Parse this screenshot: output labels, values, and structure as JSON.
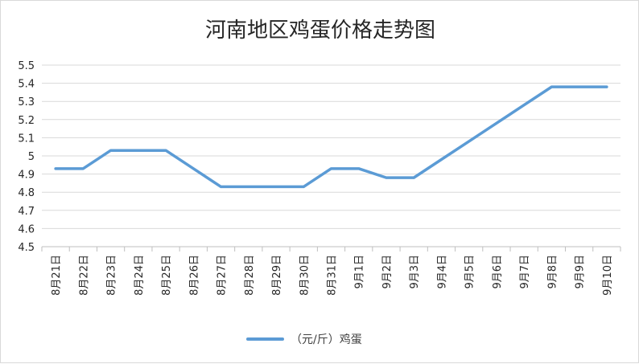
{
  "chart_data": {
    "type": "line",
    "title": "河南地区鸡蛋价格走势图",
    "xlabel": "",
    "ylabel": "",
    "categories": [
      "8月21日",
      "8月22日",
      "8月23日",
      "8月24日",
      "8月25日",
      "8月26日",
      "8月27日",
      "8月28日",
      "8月29日",
      "8月30日",
      "8月31日",
      "9月1日",
      "9月2日",
      "9月3日",
      "9月4日",
      "9月5日",
      "9月6日",
      "9月7日",
      "9月8日",
      "9月9日",
      "9月10日"
    ],
    "series": [
      {
        "name": "（元/斤）鸡蛋",
        "values": [
          4.93,
          4.93,
          5.03,
          5.03,
          5.03,
          4.93,
          4.83,
          4.83,
          4.83,
          4.83,
          4.93,
          4.93,
          4.88,
          4.88,
          4.98,
          5.08,
          5.18,
          5.28,
          5.38,
          5.38,
          5.38
        ],
        "color": "#5b9bd5"
      }
    ],
    "ylim": [
      4.5,
      5.5
    ],
    "yticks": [
      "4.5",
      "4.6",
      "4.7",
      "4.8",
      "4.9",
      "5",
      "5.1",
      "5.2",
      "5.3",
      "5.4",
      "5.5"
    ],
    "grid": true,
    "legend": "bottom"
  }
}
